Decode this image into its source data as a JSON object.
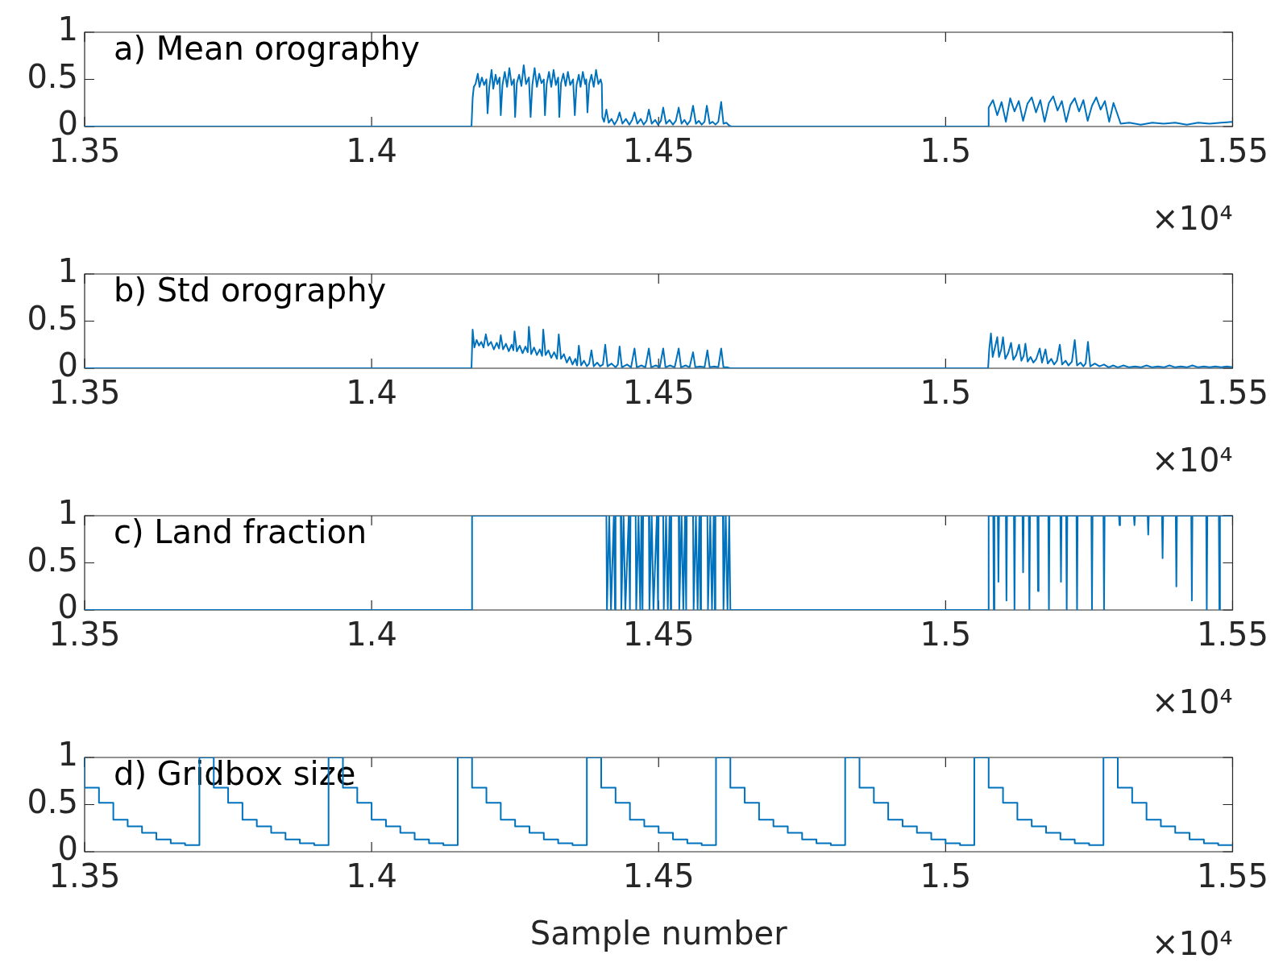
{
  "chart_data": [
    {
      "type": "line",
      "title": "a) Mean orography",
      "xlim": [
        1.35,
        1.55
      ],
      "xticks": [
        1.35,
        1.4,
        1.45,
        1.5,
        1.55
      ],
      "ylim": [
        0,
        1
      ],
      "yticks": [
        0,
        0.5,
        1
      ],
      "annotations": [
        "×10⁴"
      ],
      "series": [
        {
          "color": "#0072bd",
          "x": [
            1.35,
            1.4174,
            1.4176,
            1.4178,
            1.4181,
            1.4185,
            1.4188,
            1.4192,
            1.4196,
            1.42,
            1.4202,
            1.4205,
            1.4209,
            1.4212,
            1.4216,
            1.4219,
            1.4223,
            1.4225,
            1.4228,
            1.4232,
            1.4236,
            1.424,
            1.4244,
            1.4248,
            1.425,
            1.4253,
            1.4257,
            1.4261,
            1.4265,
            1.4269,
            1.4274,
            1.4277,
            1.428,
            1.4284,
            1.4288,
            1.4292,
            1.4296,
            1.43,
            1.4302,
            1.4305,
            1.4309,
            1.4313,
            1.4317,
            1.4321,
            1.4325,
            1.4327,
            1.433,
            1.4334,
            1.4338,
            1.4342,
            1.4346,
            1.4351,
            1.4354,
            1.4357,
            1.4361,
            1.4364,
            1.4368,
            1.4372,
            1.4374,
            1.4376,
            1.4379,
            1.4383,
            1.4387,
            1.4391,
            1.4395,
            1.4399,
            1.4401,
            1.4402,
            1.4405,
            1.4409,
            1.4413,
            1.4418,
            1.4423,
            1.4428,
            1.4432,
            1.4437,
            1.4443,
            1.4449,
            1.4454,
            1.4458,
            1.4463,
            1.4469,
            1.4474,
            1.4479,
            1.4483,
            1.4488,
            1.4494,
            1.4499,
            1.4504,
            1.4508,
            1.4513,
            1.4519,
            1.4525,
            1.453,
            1.4535,
            1.454,
            1.4545,
            1.455,
            1.4555,
            1.456,
            1.4565,
            1.457,
            1.4575,
            1.458,
            1.4584,
            1.4589,
            1.4594,
            1.4599,
            1.4604,
            1.4609,
            1.4613,
            1.4618,
            1.4623,
            1.4627,
            1.5074,
            1.5075,
            1.50825,
            1.509,
            1.50975,
            1.5105,
            1.51125,
            1.512,
            1.51275,
            1.5135,
            1.51425,
            1.515,
            1.51575,
            1.5165,
            1.51725,
            1.518,
            1.51875,
            1.5195,
            1.52025,
            1.521,
            1.52175,
            1.5225,
            1.52325,
            1.524,
            1.52475,
            1.5255,
            1.52625,
            1.527,
            1.52775,
            1.5285,
            1.52925,
            1.53,
            1.5305,
            1.532,
            1.534,
            1.536,
            1.538,
            1.54,
            1.542,
            1.544,
            1.546,
            1.548,
            1.55
          ],
          "values": [
            0,
            0,
            0.3,
            0.42,
            0.45,
            0.56,
            0.42,
            0.52,
            0.44,
            0.5,
            0.14,
            0.42,
            0.6,
            0.4,
            0.55,
            0.45,
            0.52,
            0.12,
            0.44,
            0.58,
            0.42,
            0.62,
            0.44,
            0.5,
            0.1,
            0.46,
            0.55,
            0.43,
            0.65,
            0.45,
            0.52,
            0.1,
            0.44,
            0.62,
            0.42,
            0.56,
            0.46,
            0.5,
            0.12,
            0.45,
            0.58,
            0.42,
            0.6,
            0.44,
            0.52,
            0.1,
            0.46,
            0.56,
            0.43,
            0.58,
            0.44,
            0.5,
            0.12,
            0.44,
            0.55,
            0.42,
            0.58,
            0.45,
            0.5,
            0.15,
            0.45,
            0.55,
            0.42,
            0.6,
            0.45,
            0.5,
            0.45,
            0.1,
            0.05,
            0.18,
            0.04,
            0.08,
            0.02,
            0.07,
            0.15,
            0.03,
            0.08,
            0.02,
            0.07,
            0.15,
            0.03,
            0.08,
            0.02,
            0.06,
            0.18,
            0.03,
            0.07,
            0.02,
            0.06,
            0.2,
            0.03,
            0.07,
            0.02,
            0.06,
            0.2,
            0.03,
            0.07,
            0.02,
            0.06,
            0.22,
            0.03,
            0.06,
            0.02,
            0.05,
            0.22,
            0.03,
            0.05,
            0.02,
            0.05,
            0.26,
            0.03,
            0.04,
            0.01,
            0,
            0,
            0.2,
            0.28,
            0.12,
            0.26,
            0.05,
            0.3,
            0.16,
            0.27,
            0.06,
            0.24,
            0.31,
            0.15,
            0.28,
            0.05,
            0.25,
            0.32,
            0.17,
            0.27,
            0.05,
            0.23,
            0.3,
            0.16,
            0.28,
            0.06,
            0.22,
            0.31,
            0.18,
            0.27,
            0.05,
            0.25,
            0.12,
            0.03,
            0.04,
            0.02,
            0.04,
            0.03,
            0.04,
            0.02,
            0.04,
            0.03,
            0.04,
            0.05
          ]
        }
      ]
    },
    {
      "type": "line",
      "title": "b) Std orography",
      "xlim": [
        1.35,
        1.55
      ],
      "xticks": [
        1.35,
        1.4,
        1.45,
        1.5,
        1.55
      ],
      "ylim": [
        0,
        1
      ],
      "yticks": [
        0,
        0.5,
        1
      ],
      "annotations": [
        "×10⁴"
      ],
      "series": [
        {
          "color": "#0072bd",
          "x": [
            1.35,
            1.4174,
            1.4176,
            1.4179,
            1.4183,
            1.4187,
            1.4191,
            1.4195,
            1.4199,
            1.4203,
            1.4208,
            1.4213,
            1.4218,
            1.4222,
            1.4225,
            1.4229,
            1.4234,
            1.4239,
            1.4244,
            1.4247,
            1.4249,
            1.4253,
            1.4258,
            1.4263,
            1.4268,
            1.4272,
            1.4274,
            1.4278,
            1.4283,
            1.4288,
            1.4293,
            1.4297,
            1.4299,
            1.4303,
            1.4308,
            1.4313,
            1.4318,
            1.4323,
            1.4326,
            1.433,
            1.4335,
            1.434,
            1.4345,
            1.435,
            1.4355,
            1.4358,
            1.4361,
            1.4365,
            1.437,
            1.4375,
            1.4379,
            1.4383,
            1.4387,
            1.4393,
            1.4398,
            1.4403,
            1.4407,
            1.4411,
            1.4418,
            1.4425,
            1.4429,
            1.4432,
            1.4436,
            1.4445,
            1.4452,
            1.4458,
            1.4462,
            1.447,
            1.4477,
            1.4483,
            1.4487,
            1.4495,
            1.4502,
            1.4508,
            1.4512,
            1.452,
            1.4528,
            1.4535,
            1.4539,
            1.4547,
            1.4554,
            1.456,
            1.4564,
            1.4572,
            1.458,
            1.4585,
            1.4589,
            1.4597,
            1.4604,
            1.4609,
            1.4613,
            1.462,
            1.4625,
            1.5074,
            1.5076,
            1.5079,
            1.5082,
            1.5086,
            1.509,
            1.5093,
            1.5097,
            1.51,
            1.5104,
            1.5109,
            1.5114,
            1.5118,
            1.5123,
            1.5128,
            1.5132,
            1.5136,
            1.5139,
            1.5143,
            1.5148,
            1.5153,
            1.5158,
            1.5164,
            1.5168,
            1.5174,
            1.5178,
            1.5184,
            1.5189,
            1.5194,
            1.5199,
            1.5203,
            1.5209,
            1.5214,
            1.522,
            1.5225,
            1.5229,
            1.5235,
            1.524,
            1.5244,
            1.5248,
            1.5252,
            1.526,
            1.5268,
            1.5276,
            1.5284,
            1.5292,
            1.53,
            1.531,
            1.532,
            1.533,
            1.534,
            1.535,
            1.536,
            1.537,
            1.538,
            1.539,
            1.54,
            1.541,
            1.542,
            1.543,
            1.544,
            1.545,
            1.546,
            1.547,
            1.548,
            1.549,
            1.55
          ],
          "values": [
            0,
            0,
            0.41,
            0.22,
            0.3,
            0.24,
            0.28,
            0.22,
            0.36,
            0.24,
            0.28,
            0.2,
            0.27,
            0.21,
            0.35,
            0.2,
            0.26,
            0.18,
            0.25,
            0.19,
            0.39,
            0.18,
            0.24,
            0.16,
            0.23,
            0.17,
            0.44,
            0.15,
            0.22,
            0.14,
            0.2,
            0.13,
            0.41,
            0.14,
            0.19,
            0.11,
            0.17,
            0.1,
            0.36,
            0.1,
            0.15,
            0.06,
            0.12,
            0.04,
            0.1,
            0.03,
            0.24,
            0.03,
            0.08,
            0.02,
            0.05,
            0.19,
            0.02,
            0.06,
            0.02,
            0.04,
            0.25,
            0.02,
            0.05,
            0.01,
            0.04,
            0.23,
            0.01,
            0.04,
            0.01,
            0.21,
            0.01,
            0.03,
            0.01,
            0.21,
            0.01,
            0.03,
            0.01,
            0.21,
            0.01,
            0.03,
            0.01,
            0.21,
            0.01,
            0.03,
            0.01,
            0.17,
            0.01,
            0.02,
            0.01,
            0.19,
            0.01,
            0.02,
            0.01,
            0.21,
            0.01,
            0.01,
            0,
            0,
            0.2,
            0.37,
            0.12,
            0.22,
            0.33,
            0.12,
            0.2,
            0.33,
            0.1,
            0.16,
            0.27,
            0.09,
            0.14,
            0.25,
            0.08,
            0.13,
            0.26,
            0.07,
            0.12,
            0.06,
            0.1,
            0.21,
            0.06,
            0.2,
            0.05,
            0.1,
            0.04,
            0.08,
            0.25,
            0.04,
            0.08,
            0.03,
            0.07,
            0.3,
            0.03,
            0.06,
            0.02,
            0.05,
            0.28,
            0.02,
            0.05,
            0.02,
            0.04,
            0.01,
            0.03,
            0.01,
            0.03,
            0.01,
            0.02,
            0.01,
            0.03,
            0.01,
            0.02,
            0.01,
            0.03,
            0.01,
            0.02,
            0.01,
            0.03,
            0.01,
            0.02,
            0.01,
            0.02,
            0.01,
            0.02,
            0.01
          ]
        }
      ]
    },
    {
      "type": "line",
      "title": "c) Land fraction",
      "xlim": [
        1.35,
        1.55
      ],
      "xticks": [
        1.35,
        1.4,
        1.45,
        1.5,
        1.55
      ],
      "ylim": [
        0,
        1
      ],
      "yticks": [
        0,
        0.5,
        1
      ],
      "annotations": [
        "×10⁴"
      ],
      "series": [
        {
          "color": "#0072bd",
          "x": [
            1.35,
            1.4174,
            1.4175,
            1.4409,
            1.441,
            1.4414,
            1.4417,
            1.4422,
            1.4424,
            1.4425,
            1.4434,
            1.4435,
            1.4439,
            1.4442,
            1.4448,
            1.445,
            1.4451,
            1.446,
            1.4461,
            1.4465,
            1.4468,
            1.447,
            1.4472,
            1.4473,
            1.4483,
            1.4484,
            1.4488,
            1.4491,
            1.4497,
            1.4499,
            1.45,
            1.4508,
            1.4509,
            1.4513,
            1.4516,
            1.4519,
            1.4521,
            1.4522,
            1.4535,
            1.4536,
            1.454,
            1.4543,
            1.4546,
            1.4548,
            1.4549,
            1.456,
            1.4561,
            1.4565,
            1.4568,
            1.4571,
            1.4573,
            1.4574,
            1.4585,
            1.4586,
            1.459,
            1.4593,
            1.4596,
            1.4598,
            1.4599,
            1.4612,
            1.4613,
            1.4617,
            1.462,
            1.4623,
            1.4625,
            1.5074,
            1.5075,
            1.5083,
            1.5084,
            1.5085,
            1.5091,
            1.5092,
            1.5093,
            1.5105,
            1.5106,
            1.5107,
            1.5119,
            1.512,
            1.5121,
            1.5134,
            1.5135,
            1.5136,
            1.5145,
            1.5146,
            1.5147,
            1.516,
            1.5161,
            1.5162,
            1.5179,
            1.518,
            1.5181,
            1.52,
            1.5201,
            1.5202,
            1.521,
            1.5211,
            1.5212,
            1.5228,
            1.5229,
            1.523,
            1.5254,
            1.5255,
            1.5256,
            1.5275,
            1.5276,
            1.5277,
            1.5302,
            1.5303,
            1.5304,
            1.5328,
            1.5329,
            1.533,
            1.5352,
            1.5353,
            1.5354,
            1.5377,
            1.5378,
            1.5379,
            1.5401,
            1.5402,
            1.5403,
            1.5428,
            1.5429,
            1.543,
            1.5454,
            1.5455,
            1.5456,
            1.5476,
            1.5477,
            1.5478,
            1.55
          ],
          "values": [
            0,
            0,
            1,
            1,
            0,
            1,
            0,
            1,
            0,
            1,
            1,
            0,
            1,
            0,
            1,
            0,
            1,
            1,
            0,
            1,
            0,
            1,
            0,
            1,
            1,
            0,
            1,
            0,
            1,
            0,
            1,
            1,
            0,
            1,
            0,
            1,
            0,
            1,
            1,
            0,
            1,
            0,
            1,
            0,
            1,
            1,
            0,
            1,
            0,
            1,
            0,
            1,
            1,
            0,
            1,
            0,
            1,
            0,
            1,
            1,
            0,
            1,
            0,
            1,
            0,
            0,
            1,
            1,
            0,
            1,
            1,
            0.3,
            1,
            1,
            0.1,
            1,
            1,
            0,
            1,
            1,
            0.4,
            1,
            1,
            0,
            1,
            1,
            0.2,
            1,
            1,
            0,
            1,
            1,
            0.3,
            1,
            1,
            0,
            1,
            1,
            0,
            1,
            1,
            0,
            1,
            1,
            0,
            1,
            1,
            0.9,
            1,
            1,
            0.9,
            1,
            1,
            0.8,
            1,
            1,
            0.55,
            1,
            1,
            0.25,
            1,
            1,
            0.1,
            1,
            1,
            0,
            1,
            1,
            0,
            1,
            1
          ]
        }
      ]
    },
    {
      "type": "step",
      "title": "d) Gridbox size",
      "xlabel": "Sample number",
      "xlim": [
        1.35,
        1.55
      ],
      "xticks": [
        1.35,
        1.4,
        1.45,
        1.5,
        1.55
      ],
      "ylim": [
        0,
        1
      ],
      "yticks": [
        0,
        0.5,
        1
      ],
      "annotations": [
        "×10⁴"
      ],
      "series": [
        {
          "color": "#0072bd",
          "x": [
            1.35,
            1.3525,
            1.355,
            1.3575,
            1.36,
            1.3625,
            1.365,
            1.3675,
            1.37,
            1.3725,
            1.375,
            1.3775,
            1.38,
            1.3825,
            1.385,
            1.3875,
            1.39,
            1.3925,
            1.395,
            1.3975,
            1.4,
            1.4025,
            1.405,
            1.4075,
            1.41,
            1.4125,
            1.415,
            1.4175,
            1.42,
            1.4225,
            1.425,
            1.4275,
            1.43,
            1.4325,
            1.435,
            1.4375,
            1.44,
            1.4425,
            1.445,
            1.4475,
            1.45,
            1.4525,
            1.455,
            1.4575,
            1.46,
            1.4625,
            1.465,
            1.4675,
            1.47,
            1.4725,
            1.475,
            1.4775,
            1.48,
            1.4825,
            1.485,
            1.4875,
            1.49,
            1.4925,
            1.495,
            1.4975,
            1.5,
            1.5025,
            1.505,
            1.5075,
            1.51,
            1.5125,
            1.515,
            1.5175,
            1.52,
            1.5225,
            1.525,
            1.5275,
            1.53,
            1.5325,
            1.535,
            1.5375,
            1.54,
            1.5425,
            1.545,
            1.5475,
            1.55
          ],
          "values": [
            1,
            0.68,
            0.52,
            0.34,
            0.27,
            0.2,
            0.13,
            0.09,
            0.07,
            1,
            0.68,
            0.52,
            0.34,
            0.27,
            0.2,
            0.13,
            0.09,
            0.07,
            1,
            0.68,
            0.52,
            0.34,
            0.27,
            0.2,
            0.13,
            0.09,
            0.07,
            1,
            0.68,
            0.52,
            0.34,
            0.27,
            0.2,
            0.13,
            0.09,
            0.07,
            1,
            0.68,
            0.52,
            0.34,
            0.27,
            0.2,
            0.13,
            0.09,
            0.07,
            1,
            0.68,
            0.52,
            0.34,
            0.27,
            0.2,
            0.13,
            0.09,
            0.07,
            1,
            0.68,
            0.52,
            0.34,
            0.27,
            0.2,
            0.13,
            0.09,
            0.07,
            1,
            0.68,
            0.52,
            0.34,
            0.27,
            0.2,
            0.13,
            0.09,
            0.07,
            1,
            0.68,
            0.52,
            0.34,
            0.27,
            0.2,
            0.13,
            0.09,
            0.07
          ]
        }
      ]
    }
  ]
}
